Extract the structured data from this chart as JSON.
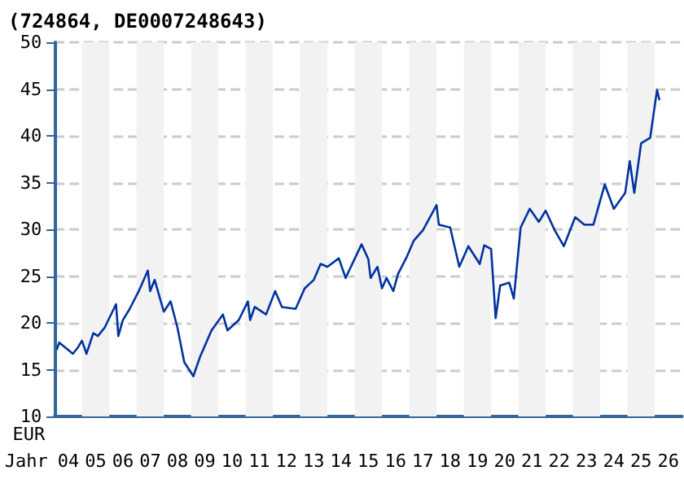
{
  "chart_data": {
    "type": "line",
    "title": "(724864, DE0007248643)",
    "xlabel": "Jahr",
    "ylabel": "EUR",
    "x": [
      "2004-02",
      "2004-03",
      "2004-05",
      "2004-09",
      "2004-11",
      "2005-01",
      "2005-03",
      "2005-06",
      "2005-08",
      "2005-11",
      "2006-03",
      "2006-04",
      "2006-05",
      "2006-07",
      "2006-10",
      "2007-02",
      "2007-06",
      "2007-07",
      "2007-09",
      "2008-01",
      "2008-04",
      "2008-07",
      "2008-10",
      "2009-02",
      "2009-05",
      "2009-10",
      "2010-03",
      "2010-05",
      "2010-10",
      "2011-02",
      "2011-03",
      "2011-05",
      "2011-10",
      "2012-02",
      "2012-05",
      "2012-11",
      "2013-03",
      "2013-07",
      "2013-10",
      "2014-01",
      "2014-06",
      "2014-09",
      "2015-04",
      "2015-07",
      "2015-08",
      "2015-11",
      "2016-01",
      "2016-03",
      "2016-06",
      "2016-08",
      "2016-12",
      "2017-03",
      "2017-07",
      "2018-01",
      "2018-02",
      "2018-07",
      "2018-11",
      "2019-03",
      "2019-08",
      "2019-10",
      "2020-01",
      "2020-03",
      "2020-05",
      "2020-09",
      "2020-11",
      "2021-02",
      "2021-06",
      "2021-10",
      "2022-01",
      "2022-05",
      "2022-09",
      "2023-02",
      "2023-06",
      "2023-10",
      "2024-03",
      "2024-07",
      "2024-12",
      "2025-02",
      "2025-04",
      "2025-07",
      "2025-11",
      "2026-02",
      "2026-03"
    ],
    "series": [
      {
        "color": "#0033a0",
        "values": [
          17.2,
          17.9,
          17.5,
          16.7,
          17.3,
          18.1,
          16.7,
          18.9,
          18.6,
          19.5,
          21.5,
          22.0,
          18.6,
          20.3,
          21.5,
          23.4,
          25.6,
          23.4,
          24.6,
          21.2,
          22.3,
          19.5,
          15.8,
          14.3,
          16.4,
          19.2,
          20.9,
          19.2,
          20.3,
          22.3,
          20.3,
          21.7,
          20.9,
          23.4,
          21.7,
          21.5,
          23.7,
          24.6,
          26.3,
          26.0,
          26.9,
          24.8,
          28.4,
          26.8,
          24.8,
          26.0,
          23.7,
          24.8,
          23.4,
          25.2,
          27.1,
          28.8,
          29.9,
          32.6,
          30.5,
          30.2,
          26.0,
          28.2,
          26.3,
          28.3,
          27.9,
          20.5,
          24.0,
          24.3,
          22.6,
          30.2,
          32.2,
          30.8,
          32.0,
          29.9,
          28.2,
          31.3,
          30.5,
          30.5,
          34.8,
          32.2,
          33.9,
          37.3,
          33.9,
          39.2,
          39.8,
          44.9,
          43.9
        ]
      }
    ],
    "xlim": [
      "2004-01",
      "2027-01"
    ],
    "xticks": [
      {
        "value": "2004-07",
        "label": "04"
      },
      {
        "value": "2005-07",
        "label": "05"
      },
      {
        "value": "2006-07",
        "label": "06"
      },
      {
        "value": "2007-07",
        "label": "07"
      },
      {
        "value": "2008-07",
        "label": "08"
      },
      {
        "value": "2009-07",
        "label": "09"
      },
      {
        "value": "2010-07",
        "label": "10"
      },
      {
        "value": "2011-07",
        "label": "11"
      },
      {
        "value": "2012-07",
        "label": "12"
      },
      {
        "value": "2013-07",
        "label": "13"
      },
      {
        "value": "2014-07",
        "label": "14"
      },
      {
        "value": "2015-07",
        "label": "15"
      },
      {
        "value": "2016-07",
        "label": "16"
      },
      {
        "value": "2017-07",
        "label": "17"
      },
      {
        "value": "2018-07",
        "label": "18"
      },
      {
        "value": "2019-07",
        "label": "19"
      },
      {
        "value": "2020-07",
        "label": "20"
      },
      {
        "value": "2021-07",
        "label": "21"
      },
      {
        "value": "2022-07",
        "label": "22"
      },
      {
        "value": "2023-07",
        "label": "23"
      },
      {
        "value": "2024-07",
        "label": "24"
      },
      {
        "value": "2025-07",
        "label": "25"
      },
      {
        "value": "2026-07",
        "label": "26"
      }
    ],
    "ylim": [
      10,
      50
    ],
    "yticks": [
      10,
      15,
      20,
      25,
      30,
      35,
      40,
      45,
      50
    ],
    "grid": "y",
    "line_style": "solid",
    "marker": "none",
    "bands": [
      {
        "axis": "x",
        "from": "2005-01",
        "to": "2006-01",
        "color": "#f2f2f2"
      },
      {
        "axis": "x",
        "from": "2007-01",
        "to": "2008-01",
        "color": "#f2f2f2"
      },
      {
        "axis": "x",
        "from": "2009-01",
        "to": "2010-01",
        "color": "#f2f2f2"
      },
      {
        "axis": "x",
        "from": "2011-01",
        "to": "2012-01",
        "color": "#f2f2f2"
      },
      {
        "axis": "x",
        "from": "2013-01",
        "to": "2014-01",
        "color": "#f2f2f2"
      },
      {
        "axis": "x",
        "from": "2015-01",
        "to": "2016-01",
        "color": "#f2f2f2"
      },
      {
        "axis": "x",
        "from": "2017-01",
        "to": "2018-01",
        "color": "#f2f2f2"
      },
      {
        "axis": "x",
        "from": "2019-01",
        "to": "2020-01",
        "color": "#f2f2f2"
      },
      {
        "axis": "x",
        "from": "2021-01",
        "to": "2022-01",
        "color": "#f2f2f2"
      },
      {
        "axis": "x",
        "from": "2023-01",
        "to": "2024-01",
        "color": "#f2f2f2"
      },
      {
        "axis": "x",
        "from": "2025-01",
        "to": "2026-01",
        "color": "#f2f2f2"
      }
    ]
  }
}
